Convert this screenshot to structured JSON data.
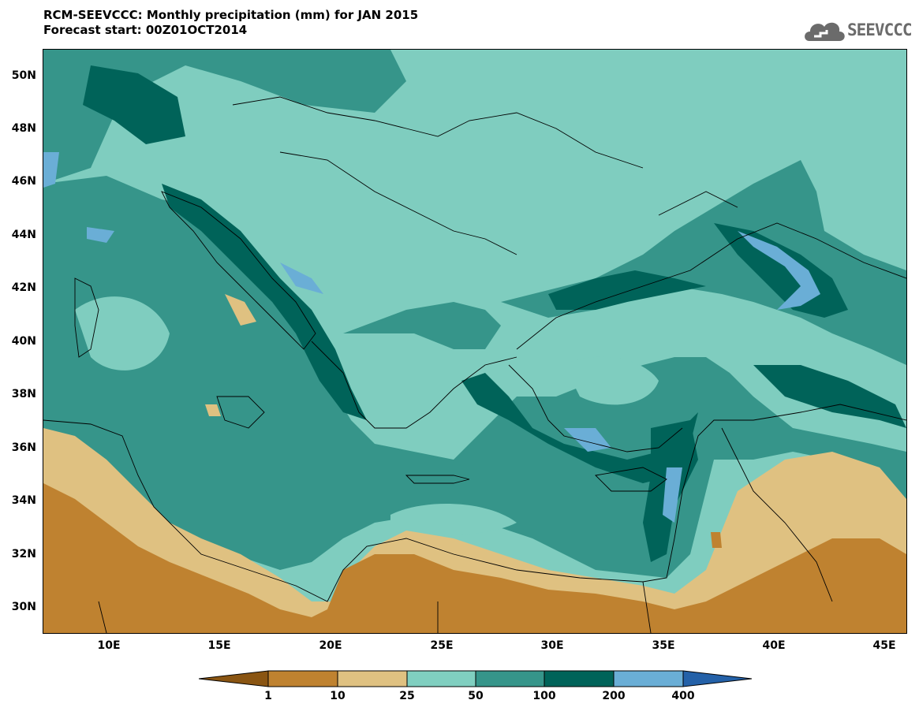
{
  "title": {
    "line1": "RCM-SEEVCCC: Monthly precipitation (mm) for JAN 2015",
    "line2": "Forecast start: 00Z01OCT2014"
  },
  "logo": {
    "text": "SEEVCCC",
    "icon": "cloud-icon"
  },
  "map": {
    "lat_ticks": [
      "50N",
      "48N",
      "46N",
      "44N",
      "42N",
      "40N",
      "38N",
      "36N",
      "34N",
      "32N",
      "30N"
    ],
    "lon_ticks": [
      "10E",
      "15E",
      "20E",
      "25E",
      "30E",
      "35E",
      "40E",
      "45E"
    ]
  },
  "legend": {
    "labels": [
      "1",
      "10",
      "25",
      "50",
      "100",
      "200",
      "400"
    ],
    "colors": [
      "#8a5512",
      "#bf8230",
      "#dfc181",
      "#80cfc0",
      "#36958a",
      "#006359",
      "#6aaed6",
      "#2461a8"
    ]
  }
}
